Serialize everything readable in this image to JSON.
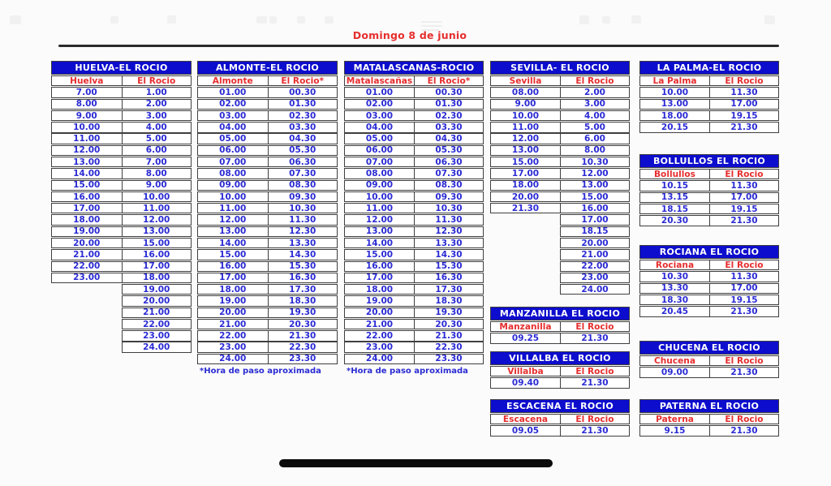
{
  "page": {
    "title": "Domingo 8 de junio"
  },
  "colors": {
    "header_bg": "#0d0dcd",
    "header_text": "#ffffff",
    "city_text": "#e62e2e",
    "time_text": "#2b2bd4",
    "border": "#3f3f3f",
    "title_text": "#e62e2e",
    "rule": "#2b2b2b"
  },
  "tables": [
    {
      "id": "huelva",
      "title": "HUELVA-EL ROCIO",
      "columns": [
        "Huelva",
        "El Rocio"
      ],
      "rows": [
        [
          "7.00",
          "1.00"
        ],
        [
          "8.00",
          "2.00"
        ],
        [
          "9.00",
          "3.00"
        ],
        [
          "10.00",
          "4.00"
        ],
        [
          "11.00",
          "5.00"
        ],
        [
          "12.00",
          "6.00"
        ],
        [
          "13.00",
          "7.00"
        ],
        [
          "14.00",
          "8.00"
        ],
        [
          "15.00",
          "9.00"
        ],
        [
          "16.00",
          "10.00"
        ],
        [
          "17.00",
          "11.00"
        ],
        [
          "18.00",
          "12.00"
        ],
        [
          "19.00",
          "13.00"
        ],
        [
          "20.00",
          "15.00"
        ],
        [
          "21.00",
          "16.00"
        ],
        [
          "22.00",
          "17.00"
        ],
        [
          "23.00",
          "18.00"
        ],
        [
          null,
          "19.00"
        ],
        [
          null,
          "20.00"
        ],
        [
          null,
          "21.00"
        ],
        [
          null,
          "22.00"
        ],
        [
          null,
          "23.00"
        ],
        [
          null,
          "24.00"
        ]
      ]
    },
    {
      "id": "almonte",
      "title": "ALMONTE-EL ROCIO",
      "columns": [
        "Almonte",
        "El Rocio*"
      ],
      "rows": [
        [
          "01.00",
          "00.30"
        ],
        [
          "02.00",
          "01.30"
        ],
        [
          "03.00",
          "02.30"
        ],
        [
          "04.00",
          "03.30"
        ],
        [
          "05.00",
          "04.30"
        ],
        [
          "06.00",
          "05.30"
        ],
        [
          "07.00",
          "06.30"
        ],
        [
          "08.00",
          "07.30"
        ],
        [
          "09.00",
          "08.30"
        ],
        [
          "10.00",
          "09.30"
        ],
        [
          "11.00",
          "10.30"
        ],
        [
          "12.00",
          "11.30"
        ],
        [
          "13.00",
          "12.30"
        ],
        [
          "14.00",
          "13.30"
        ],
        [
          "15.00",
          "14.30"
        ],
        [
          "16.00",
          "15.30"
        ],
        [
          "17.00",
          "16.30"
        ],
        [
          "18.00",
          "17.30"
        ],
        [
          "19.00",
          "18.30"
        ],
        [
          "20.00",
          "19.30"
        ],
        [
          "21.00",
          "20.30"
        ],
        [
          "22.00",
          "21.30"
        ],
        [
          "23.00",
          "22.30"
        ],
        [
          "24.00",
          "23.30"
        ]
      ],
      "footnote": "*Hora de paso aproximada"
    },
    {
      "id": "matalascanas",
      "title": "MATALASCANAS-ROCIO",
      "columns": [
        "Matalascañas",
        "El Rocio*"
      ],
      "rows": [
        [
          "01.00",
          "00.30"
        ],
        [
          "02.00",
          "01.30"
        ],
        [
          "03.00",
          "02.30"
        ],
        [
          "04.00",
          "03.30"
        ],
        [
          "05.00",
          "04.30"
        ],
        [
          "06.00",
          "05.30"
        ],
        [
          "07.00",
          "06.30"
        ],
        [
          "08.00",
          "07.30"
        ],
        [
          "09.00",
          "08.30"
        ],
        [
          "10.00",
          "09.30"
        ],
        [
          "11.00",
          "10.30"
        ],
        [
          "12.00",
          "11.30"
        ],
        [
          "13.00",
          "12.30"
        ],
        [
          "14.00",
          "13.30"
        ],
        [
          "15.00",
          "14.30"
        ],
        [
          "16.00",
          "15.30"
        ],
        [
          "17.00",
          "16.30"
        ],
        [
          "18.00",
          "17.30"
        ],
        [
          "19.00",
          "18.30"
        ],
        [
          "20.00",
          "19.30"
        ],
        [
          "21.00",
          "20.30"
        ],
        [
          "22.00",
          "21.30"
        ],
        [
          "23.00",
          "22.30"
        ],
        [
          "24.00",
          "23.30"
        ]
      ],
      "footnote": "*Hora de paso aproximada"
    },
    {
      "id": "sevilla",
      "title": "SEVILLA- EL ROCIO",
      "columns": [
        "Sevilla",
        "El Rocio"
      ],
      "rows": [
        [
          "08.00",
          "2.00"
        ],
        [
          "9.00",
          "3.00"
        ],
        [
          "10.00",
          "4.00"
        ],
        [
          "11.00",
          "5.00"
        ],
        [
          "12.00",
          "6.00"
        ],
        [
          "13.00",
          "8.00"
        ],
        [
          "15.00",
          "10.30"
        ],
        [
          "17.00",
          "12.00"
        ],
        [
          "18.00",
          "13.00"
        ],
        [
          "20.00",
          "15.00"
        ],
        [
          "21.30",
          "16.00"
        ],
        [
          null,
          "17.00"
        ],
        [
          null,
          "18.15"
        ],
        [
          null,
          "20.00"
        ],
        [
          null,
          "21.00"
        ],
        [
          null,
          "22.00"
        ],
        [
          null,
          "23.00"
        ],
        [
          null,
          "24.00"
        ]
      ]
    },
    {
      "id": "lapalma",
      "title": "LA PALMA-EL ROCIO",
      "columns": [
        "La Palma",
        "El Rocio"
      ],
      "rows": [
        [
          "10.00",
          "11.30"
        ],
        [
          "13.00",
          "17.00"
        ],
        [
          "18.00",
          "19.15"
        ],
        [
          "20.15",
          "21.30"
        ]
      ]
    },
    {
      "id": "bollullos",
      "title": "BOLLULLOS EL ROCIO",
      "columns": [
        "Bollullos",
        "El Rocio"
      ],
      "rows": [
        [
          "10.15",
          "11.30"
        ],
        [
          "13.15",
          "17.00"
        ],
        [
          "18.15",
          "19.15"
        ],
        [
          "20.30",
          "21.30"
        ]
      ]
    },
    {
      "id": "rociana",
      "title": "ROCIANA EL ROCIO",
      "columns": [
        "Rociana",
        "El Rocio"
      ],
      "rows": [
        [
          "10.30",
          "11.30"
        ],
        [
          "13.30",
          "17.00"
        ],
        [
          "18.30",
          "19.15"
        ],
        [
          "20.45",
          "21.30"
        ]
      ]
    },
    {
      "id": "manzanilla",
      "title": "MANZANILLA EL ROCIO",
      "columns": [
        "Manzanilla",
        "El Rocio"
      ],
      "rows": [
        [
          "09.25",
          "21.30"
        ]
      ]
    },
    {
      "id": "villalba",
      "title": "VILLALBA EL ROCIO",
      "columns": [
        "Villalba",
        "El Rocio"
      ],
      "rows": [
        [
          "09.40",
          "21.30"
        ]
      ]
    },
    {
      "id": "chucena",
      "title": "CHUCENA EL ROCIO",
      "columns": [
        "Chucena",
        "El Rocio"
      ],
      "rows": [
        [
          "09.00",
          "21.30"
        ]
      ]
    },
    {
      "id": "escacena",
      "title": "ESCACENA EL ROCIO",
      "columns": [
        "Escacena",
        "El Rocio"
      ],
      "rows": [
        [
          "09.05",
          "21.30"
        ]
      ]
    },
    {
      "id": "paterna",
      "title": "PATERNA EL ROCIO",
      "columns": [
        "Paterna",
        "El Rocio"
      ],
      "rows": [
        [
          "9.15",
          "21.30"
        ]
      ]
    }
  ]
}
